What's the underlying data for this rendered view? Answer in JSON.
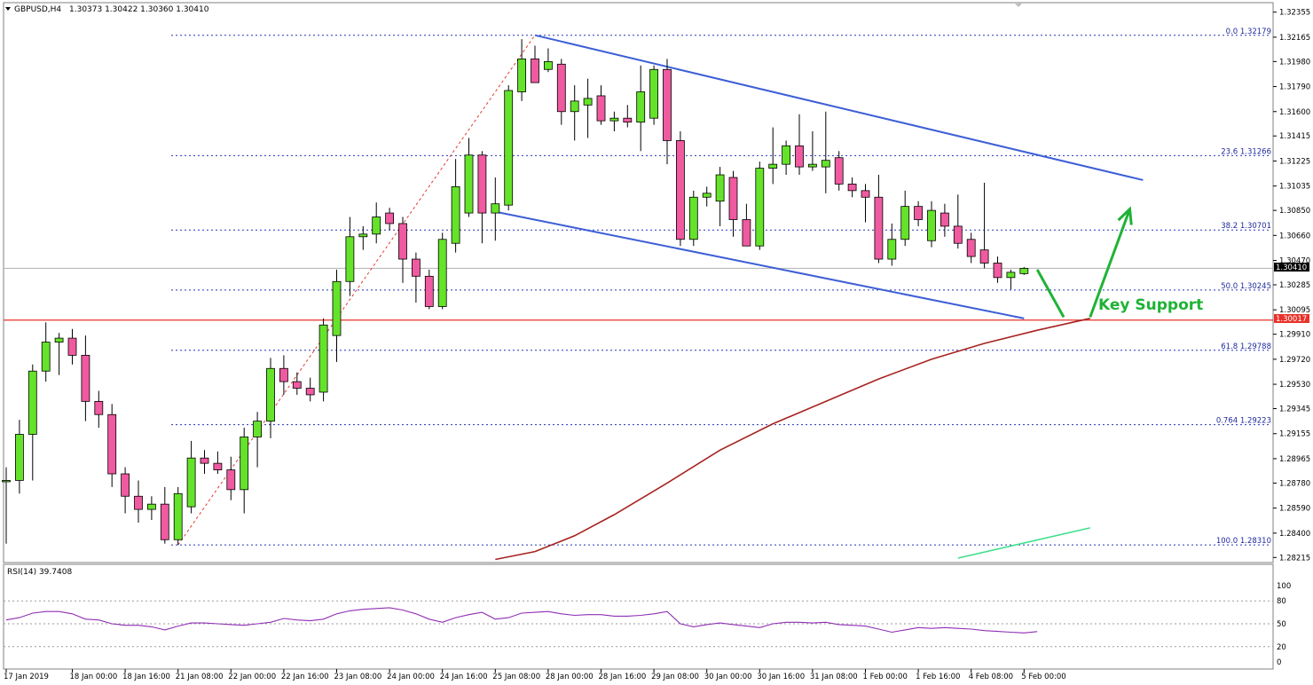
{
  "chart_data": {
    "type": "candlestick",
    "symbol": "GBPUSD,H4",
    "ohlc_header": "1.30373 1.30422 1.30360 1.30410",
    "current_price": "1.30410",
    "support_price": "1.30017",
    "annotation": "Key Support",
    "ylim": [
      1.2819,
      1.324
    ],
    "y_ticks": [
      "1.32355",
      "1.32165",
      "1.31980",
      "1.31790",
      "1.31600",
      "1.31415",
      "1.31225",
      "1.31035",
      "1.30850",
      "1.30660",
      "1.30470",
      "1.30285",
      "1.30095",
      "1.29910",
      "1.29720",
      "1.29530",
      "1.29345",
      "1.29155",
      "1.28965",
      "1.28780",
      "1.28590",
      "1.28400",
      "1.28215"
    ],
    "x_ticks": [
      {
        "bar": 0,
        "label": "17 Jan 2019"
      },
      {
        "bar": 5,
        "label": "18 Jan 00:00"
      },
      {
        "bar": 9,
        "label": "18 Jan 16:00"
      },
      {
        "bar": 13,
        "label": "21 Jan 08:00"
      },
      {
        "bar": 17,
        "label": "22 Jan 00:00"
      },
      {
        "bar": 21,
        "label": "22 Jan 16:00"
      },
      {
        "bar": 25,
        "label": "23 Jan 08:00"
      },
      {
        "bar": 29,
        "label": "24 Jan 00:00"
      },
      {
        "bar": 33,
        "label": "24 Jan 16:00"
      },
      {
        "bar": 37,
        "label": "25 Jan 08:00"
      },
      {
        "bar": 41,
        "label": "28 Jan 00:00"
      },
      {
        "bar": 45,
        "label": "28 Jan 16:00"
      },
      {
        "bar": 49,
        "label": "29 Jan 08:00"
      },
      {
        "bar": 53,
        "label": "30 Jan 00:00"
      },
      {
        "bar": 57,
        "label": "30 Jan 16:00"
      },
      {
        "bar": 61,
        "label": "31 Jan 08:00"
      },
      {
        "bar": 65,
        "label": "1 Feb 00:00"
      },
      {
        "bar": 69,
        "label": "1 Feb 16:00"
      },
      {
        "bar": 73,
        "label": "4 Feb 08:00"
      },
      {
        "bar": 77,
        "label": "5 Feb 00:00"
      }
    ],
    "candles": [
      {
        "o": 1.288,
        "h": 1.289,
        "l": 1.2832,
        "c": 1.288
      },
      {
        "o": 1.288,
        "h": 1.2926,
        "l": 1.287,
        "c": 1.2915
      },
      {
        "o": 1.2915,
        "h": 1.2968,
        "l": 1.288,
        "c": 1.2963
      },
      {
        "o": 1.2963,
        "h": 1.3,
        "l": 1.2955,
        "c": 1.2985
      },
      {
        "o": 1.2985,
        "h": 1.2992,
        "l": 1.296,
        "c": 1.2988
      },
      {
        "o": 1.2988,
        "h": 1.2995,
        "l": 1.2968,
        "c": 1.2975
      },
      {
        "o": 1.2975,
        "h": 1.299,
        "l": 1.2925,
        "c": 1.294
      },
      {
        "o": 1.294,
        "h": 1.2948,
        "l": 1.292,
        "c": 1.293
      },
      {
        "o": 1.293,
        "h": 1.2938,
        "l": 1.2875,
        "c": 1.2885
      },
      {
        "o": 1.2885,
        "h": 1.289,
        "l": 1.2855,
        "c": 1.2868
      },
      {
        "o": 1.2868,
        "h": 1.288,
        "l": 1.2848,
        "c": 1.2858
      },
      {
        "o": 1.2858,
        "h": 1.2868,
        "l": 1.285,
        "c": 1.2862
      },
      {
        "o": 1.2862,
        "h": 1.2875,
        "l": 1.2832,
        "c": 1.2835
      },
      {
        "o": 1.2835,
        "h": 1.2875,
        "l": 1.2831,
        "c": 1.287
      },
      {
        "o": 1.286,
        "h": 1.291,
        "l": 1.2855,
        "c": 1.2897
      },
      {
        "o": 1.2897,
        "h": 1.2903,
        "l": 1.2885,
        "c": 1.2893
      },
      {
        "o": 1.2893,
        "h": 1.2902,
        "l": 1.2885,
        "c": 1.2888
      },
      {
        "o": 1.2888,
        "h": 1.2898,
        "l": 1.2865,
        "c": 1.2873
      },
      {
        "o": 1.2873,
        "h": 1.292,
        "l": 1.2855,
        "c": 1.2913
      },
      {
        "o": 1.2913,
        "h": 1.2932,
        "l": 1.289,
        "c": 1.2925
      },
      {
        "o": 1.2925,
        "h": 1.2973,
        "l": 1.2912,
        "c": 1.2965
      },
      {
        "o": 1.2965,
        "h": 1.2975,
        "l": 1.2945,
        "c": 1.2955
      },
      {
        "o": 1.2955,
        "h": 1.2962,
        "l": 1.2945,
        "c": 1.295
      },
      {
        "o": 1.295,
        "h": 1.2958,
        "l": 1.294,
        "c": 1.2945
      },
      {
        "o": 1.2947,
        "h": 1.3003,
        "l": 1.294,
        "c": 1.2998
      },
      {
        "o": 1.299,
        "h": 1.304,
        "l": 1.297,
        "c": 1.3031
      },
      {
        "o": 1.3031,
        "h": 1.308,
        "l": 1.302,
        "c": 1.3065
      },
      {
        "o": 1.3065,
        "h": 1.3073,
        "l": 1.3055,
        "c": 1.3067
      },
      {
        "o": 1.3067,
        "h": 1.3091,
        "l": 1.306,
        "c": 1.308
      },
      {
        "o": 1.3083,
        "h": 1.3087,
        "l": 1.307,
        "c": 1.3075
      },
      {
        "o": 1.3075,
        "h": 1.308,
        "l": 1.303,
        "c": 1.3048
      },
      {
        "o": 1.3048,
        "h": 1.3053,
        "l": 1.3015,
        "c": 1.3035
      },
      {
        "o": 1.3035,
        "h": 1.304,
        "l": 1.301,
        "c": 1.3012
      },
      {
        "o": 1.3012,
        "h": 1.3068,
        "l": 1.301,
        "c": 1.3063
      },
      {
        "o": 1.306,
        "h": 1.3124,
        "l": 1.3053,
        "c": 1.3103
      },
      {
        "o": 1.3083,
        "h": 1.314,
        "l": 1.308,
        "c": 1.3127
      },
      {
        "o": 1.3127,
        "h": 1.313,
        "l": 1.306,
        "c": 1.3083
      },
      {
        "o": 1.3083,
        "h": 1.311,
        "l": 1.3062,
        "c": 1.309
      },
      {
        "o": 1.3089,
        "h": 1.318,
        "l": 1.3085,
        "c": 1.3176
      },
      {
        "o": 1.3175,
        "h": 1.3215,
        "l": 1.3168,
        "c": 1.32
      },
      {
        "o": 1.32,
        "h": 1.321,
        "l": 1.3185,
        "c": 1.3182
      },
      {
        "o": 1.3192,
        "h": 1.3208,
        "l": 1.319,
        "c": 1.3198
      },
      {
        "o": 1.3196,
        "h": 1.32,
        "l": 1.315,
        "c": 1.316
      },
      {
        "o": 1.316,
        "h": 1.318,
        "l": 1.3138,
        "c": 1.3168
      },
      {
        "o": 1.3165,
        "h": 1.3185,
        "l": 1.314,
        "c": 1.317
      },
      {
        "o": 1.3172,
        "h": 1.318,
        "l": 1.315,
        "c": 1.3153
      },
      {
        "o": 1.3153,
        "h": 1.316,
        "l": 1.3145,
        "c": 1.3155
      },
      {
        "o": 1.3155,
        "h": 1.3165,
        "l": 1.3148,
        "c": 1.3152
      },
      {
        "o": 1.3152,
        "h": 1.3195,
        "l": 1.313,
        "c": 1.3175
      },
      {
        "o": 1.3155,
        "h": 1.3195,
        "l": 1.315,
        "c": 1.3192
      },
      {
        "o": 1.3192,
        "h": 1.32,
        "l": 1.312,
        "c": 1.3138
      },
      {
        "o": 1.3138,
        "h": 1.3145,
        "l": 1.3058,
        "c": 1.3063
      },
      {
        "o": 1.3063,
        "h": 1.31,
        "l": 1.3058,
        "c": 1.3095
      },
      {
        "o": 1.3095,
        "h": 1.3103,
        "l": 1.3088,
        "c": 1.3098
      },
      {
        "o": 1.3092,
        "h": 1.3118,
        "l": 1.3073,
        "c": 1.3112
      },
      {
        "o": 1.311,
        "h": 1.3115,
        "l": 1.3065,
        "c": 1.3078
      },
      {
        "o": 1.3078,
        "h": 1.309,
        "l": 1.3058,
        "c": 1.3058
      },
      {
        "o": 1.3058,
        "h": 1.3122,
        "l": 1.3055,
        "c": 1.3117
      },
      {
        "o": 1.3117,
        "h": 1.3148,
        "l": 1.3105,
        "c": 1.312
      },
      {
        "o": 1.312,
        "h": 1.3138,
        "l": 1.3112,
        "c": 1.3134
      },
      {
        "o": 1.3134,
        "h": 1.3158,
        "l": 1.3112,
        "c": 1.3118
      },
      {
        "o": 1.3118,
        "h": 1.3145,
        "l": 1.3115,
        "c": 1.312
      },
      {
        "o": 1.3118,
        "h": 1.316,
        "l": 1.3098,
        "c": 1.3123
      },
      {
        "o": 1.3125,
        "h": 1.313,
        "l": 1.31,
        "c": 1.3105
      },
      {
        "o": 1.3105,
        "h": 1.311,
        "l": 1.3095,
        "c": 1.31
      },
      {
        "o": 1.31,
        "h": 1.3105,
        "l": 1.3076,
        "c": 1.3095
      },
      {
        "o": 1.3095,
        "h": 1.3112,
        "l": 1.3045,
        "c": 1.3048
      },
      {
        "o": 1.3048,
        "h": 1.3075,
        "l": 1.3043,
        "c": 1.3063
      },
      {
        "o": 1.3063,
        "h": 1.31,
        "l": 1.3058,
        "c": 1.3088
      },
      {
        "o": 1.3088,
        "h": 1.3092,
        "l": 1.3073,
        "c": 1.3078
      },
      {
        "o": 1.3062,
        "h": 1.3092,
        "l": 1.3057,
        "c": 1.3085
      },
      {
        "o": 1.3083,
        "h": 1.309,
        "l": 1.3065,
        "c": 1.3073
      },
      {
        "o": 1.3073,
        "h": 1.3097,
        "l": 1.3056,
        "c": 1.306
      },
      {
        "o": 1.3063,
        "h": 1.3068,
        "l": 1.3045,
        "c": 1.305
      },
      {
        "o": 1.3055,
        "h": 1.3106,
        "l": 1.3041,
        "c": 1.3045
      },
      {
        "o": 1.3045,
        "h": 1.305,
        "l": 1.303,
        "c": 1.3034
      },
      {
        "o": 1.3034,
        "h": 1.304,
        "l": 1.3025,
        "c": 1.3038
      },
      {
        "o": 1.3037,
        "h": 1.3042,
        "l": 1.3036,
        "c": 1.3041
      }
    ],
    "fibonacci": [
      {
        "label": "0.0  1.32179",
        "price": 1.32179
      },
      {
        "label": "23.6  1.31266",
        "price": 1.31266
      },
      {
        "label": "38.2  1.30701",
        "price": 1.30701
      },
      {
        "label": "50.0  1.30245",
        "price": 1.30245
      },
      {
        "label": "61.8  1.29788",
        "price": 1.29788
      },
      {
        "label": "0.764  1.29223",
        "price": 1.29223
      },
      {
        "label": "100.0  1.28310",
        "price": 1.2831
      }
    ],
    "fib_swing": [
      {
        "bar": 13,
        "price": 1.2831
      },
      {
        "bar": 40,
        "price": 1.3218
      }
    ],
    "channel_upper": [
      {
        "bar": 40,
        "price": 1.3218
      },
      {
        "bar": 86,
        "price": 1.3108
      }
    ],
    "channel_lower": [
      {
        "bar": 37,
        "price": 1.3084
      },
      {
        "bar": 77,
        "price": 1.3003
      }
    ],
    "ma_red": [
      {
        "bar": 37,
        "price": 1.282
      },
      {
        "bar": 40,
        "price": 1.2826
      },
      {
        "bar": 43,
        "price": 1.2838
      },
      {
        "bar": 46,
        "price": 1.2854
      },
      {
        "bar": 50,
        "price": 1.2878
      },
      {
        "bar": 54,
        "price": 1.2903
      },
      {
        "bar": 58,
        "price": 1.2923
      },
      {
        "bar": 62,
        "price": 1.294
      },
      {
        "bar": 66,
        "price": 1.2957
      },
      {
        "bar": 70,
        "price": 1.2972
      },
      {
        "bar": 74,
        "price": 1.2984
      },
      {
        "bar": 78,
        "price": 1.2994
      },
      {
        "bar": 82,
        "price": 1.3003
      }
    ],
    "ma_green": [
      {
        "bar": 72,
        "price": 1.2821
      },
      {
        "bar": 82,
        "price": 1.2844
      }
    ],
    "forecast_down": [
      {
        "bar": 78,
        "price": 1.304
      },
      {
        "bar": 80,
        "price": 1.3004
      }
    ],
    "forecast_up": [
      {
        "bar": 82,
        "price": 1.3004
      },
      {
        "bar": 85,
        "price": 1.3086
      }
    ],
    "rsi": {
      "label": "RSI(14) 39.7408",
      "ticks": [
        "100",
        "80",
        "50",
        "20",
        "0"
      ],
      "levels": [
        80,
        50,
        20
      ],
      "values": [
        55,
        58,
        64,
        66,
        66,
        63,
        56,
        55,
        50,
        48,
        48,
        46,
        42,
        47,
        51,
        51,
        50,
        49,
        48,
        50,
        52,
        57,
        55,
        54,
        56,
        63,
        67,
        69,
        70,
        71,
        68,
        63,
        56,
        52,
        58,
        62,
        65,
        56,
        58,
        64,
        65,
        66,
        63,
        61,
        62,
        62,
        60,
        60,
        61,
        63,
        66,
        50,
        46,
        49,
        51,
        49,
        47,
        45,
        50,
        52,
        52,
        51,
        52,
        49,
        48,
        47,
        43,
        39,
        42,
        45,
        44,
        45,
        44,
        43,
        41,
        40,
        39,
        38,
        39.74
      ]
    }
  }
}
